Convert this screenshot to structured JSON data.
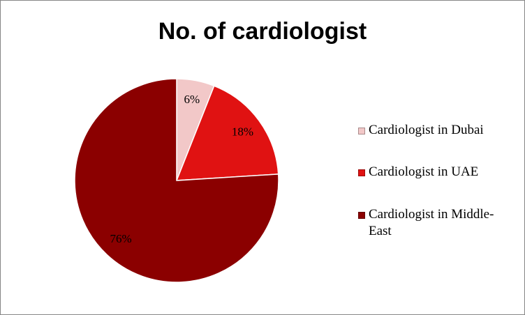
{
  "chart_data": {
    "type": "pie",
    "title": "No. of cardiologist",
    "categories": [
      "Cardiologist in Dubai",
      "Cardiologist in UAE",
      "Cardiologist in Middle-East"
    ],
    "values": [
      6,
      18,
      76
    ],
    "value_labels": [
      "6%",
      "18%",
      "76%"
    ],
    "colors": [
      "#f2c8c8",
      "#e01212",
      "#8b0000"
    ]
  }
}
